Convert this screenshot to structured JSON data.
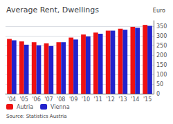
{
  "chart_data": {
    "type": "bar",
    "title": "Average Rent, Dwellings",
    "ylabel": "Euro",
    "annotations": [
      "Source: Statistics Austria"
    ],
    "categories": [
      "'04",
      "'05",
      "'06",
      "'07",
      "'08",
      "'09",
      "'10",
      "'11",
      "'12",
      "'13",
      "'14",
      "'15"
    ],
    "series": [
      {
        "name": "Autria",
        "color": "#ee1111",
        "values": [
          285,
          272,
          268,
          262,
          268,
          292,
          308,
          318,
          328,
          338,
          348,
          358
        ]
      },
      {
        "name": "Vienna",
        "color": "#2222cc",
        "values": [
          278,
          255,
          252,
          248,
          268,
          282,
          298,
          312,
          328,
          333,
          343,
          353
        ]
      }
    ],
    "ylim": [
      0,
      380
    ],
    "yticks": [
      0,
      50,
      100,
      150,
      200,
      250,
      300,
      350
    ],
    "grid": true,
    "legend": "lower left"
  }
}
